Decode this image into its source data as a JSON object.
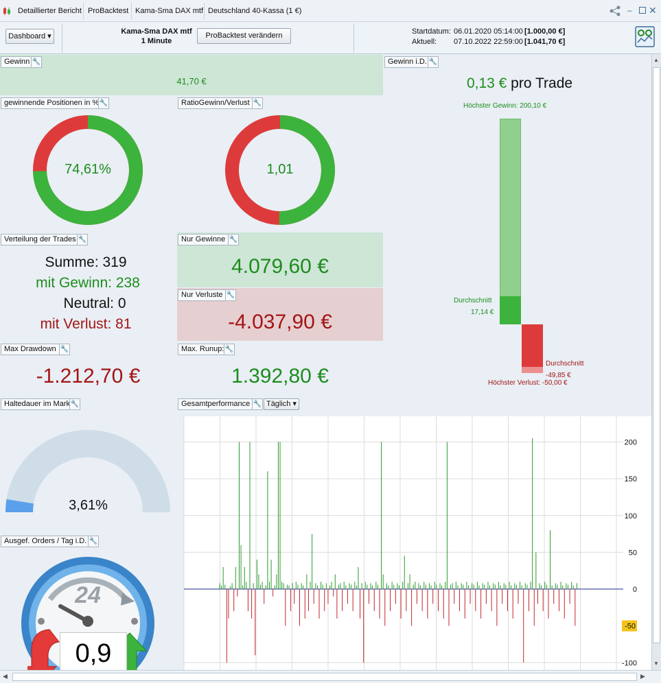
{
  "window": {
    "tabs": [
      "Detaillierter Bericht",
      "ProBacktest",
      "Kama-Sma DAX mtf",
      "Deutschland 40-Kassa (1 €)"
    ]
  },
  "header": {
    "dashboard_label": "Dashboard",
    "strategy_name": "Kama-Sma DAX mtf",
    "timeframe": "1 Minute",
    "change_button": "ProBacktest verändern",
    "start_label": "Startdatum:",
    "start_value": "06.01.2020 05:14:00",
    "start_amount": "[1.000,00 €]",
    "current_label": "Aktuell:",
    "current_value": "07.10.2022 22:59:00",
    "current_amount": "[1.041,70 €]"
  },
  "gewinn": {
    "title": "Gewinn",
    "value": "41,70 €"
  },
  "winning_positions": {
    "title": "gewinnende Positionen in %",
    "value": "74,61%",
    "fraction": 0.7461
  },
  "ratio": {
    "title": "RatioGewinn/Verlust",
    "value": "1,01",
    "fraction": 0.5025
  },
  "distribution": {
    "title": "Verteilung der Trades",
    "sum": "Summe: 319",
    "win": "mit Gewinn: 238",
    "neutral": "Neutral: 0",
    "loss": "mit Verlust: 81"
  },
  "only_gains": {
    "title": "Nur Gewinne",
    "value": "4.079,60 €"
  },
  "only_losses": {
    "title": "Nur Verluste",
    "value": "-4.037,90 €"
  },
  "max_drawdown": {
    "title": "Max Drawdown",
    "value": "-1.212,70 €"
  },
  "max_runup": {
    "title": "Max. Runup:",
    "value": "1.392,80 €"
  },
  "gain_per_trade": {
    "title": "Gewinn i.D.",
    "amount": "0,13 €",
    "suffix": "pro Trade",
    "highest_gain_label": "Höchster Gewinn: 200,10 €",
    "avg_label": "Durchschnitt",
    "avg_gain": "17,14 €",
    "avg_loss": "-49,85 €",
    "highest_loss_label": "Höchster Verlust: -50,00 €",
    "highest_gain_value": 200.1,
    "avg_gain_value": 17.14,
    "avg_loss_value": -49.85,
    "highest_loss_value": -50.0
  },
  "holding": {
    "title": "Haltedauer im Markt",
    "value": "3,61%",
    "fraction": 0.0361
  },
  "orders": {
    "title": "Ausgef. Orders / Tag i.D.",
    "clock_label": "24",
    "value": "0,9"
  },
  "performance": {
    "title": "Gesamtperformance",
    "period": "Täglich",
    "current_marker": "-50"
  },
  "chart_data": {
    "type": "bar",
    "title": "",
    "xlabel": "",
    "ylabel": "",
    "ylim": [
      -110,
      235
    ],
    "y_ticks": [
      "200",
      "150",
      "100",
      "50",
      "0",
      "-100"
    ],
    "values": [
      8,
      5,
      30,
      6,
      -100,
      -40,
      4,
      8,
      -30,
      30,
      -10,
      200,
      60,
      5,
      30,
      10,
      -30,
      200,
      -40,
      8,
      -90,
      40,
      20,
      6,
      10,
      -20,
      5,
      160,
      10,
      40,
      -10,
      5,
      20,
      200,
      200,
      10,
      8,
      -50,
      6,
      5,
      -30,
      8,
      -20,
      10,
      6,
      -50,
      8,
      5,
      -40,
      20,
      -30,
      10,
      75,
      -20,
      8,
      5,
      -40,
      10,
      6,
      -30,
      8,
      -20,
      5,
      10,
      -10,
      20,
      -40,
      6,
      8,
      -30,
      10,
      5,
      -20,
      8,
      6,
      -30,
      10,
      5,
      30,
      -40,
      8,
      -100,
      10,
      6,
      -20,
      8,
      5,
      -30,
      10,
      6,
      -40,
      200,
      20,
      -50,
      8,
      5,
      -30,
      10,
      6,
      -20,
      8,
      5,
      -40,
      10,
      45,
      -30,
      8,
      20,
      -50,
      6,
      10,
      -20,
      8,
      5,
      -30,
      10,
      6,
      -40,
      8,
      5,
      -20,
      10,
      6,
      -30,
      8,
      5,
      -40,
      10,
      200,
      -50,
      6,
      8,
      -20,
      10,
      5,
      -30,
      8,
      6,
      -40,
      10,
      5,
      -20,
      8,
      6,
      -30,
      10,
      5,
      -40,
      8,
      6,
      -20,
      10,
      5,
      -30,
      8,
      6,
      -50,
      10,
      5,
      -20,
      8,
      6,
      -30,
      10,
      5,
      -40,
      8,
      6,
      -20,
      10,
      5,
      -100,
      8,
      6,
      -30,
      10,
      205,
      -50,
      50,
      -20,
      8,
      5,
      -30,
      10,
      6,
      -40,
      80,
      5,
      -20,
      8,
      6,
      -30,
      10,
      5,
      -40,
      8,
      6,
      -20,
      10,
      5,
      -50,
      8
    ]
  },
  "colors": {
    "win": "#3cb33c",
    "loss": "#dd3b3b",
    "win_panel": "#cde6d6",
    "loss_panel": "#e6cfd1",
    "bar_win": "#8fd08f",
    "bar_loss": "#dd3b3b",
    "gauge_track": "#cfdde8",
    "gauge_fill": "#5aa0ea"
  }
}
